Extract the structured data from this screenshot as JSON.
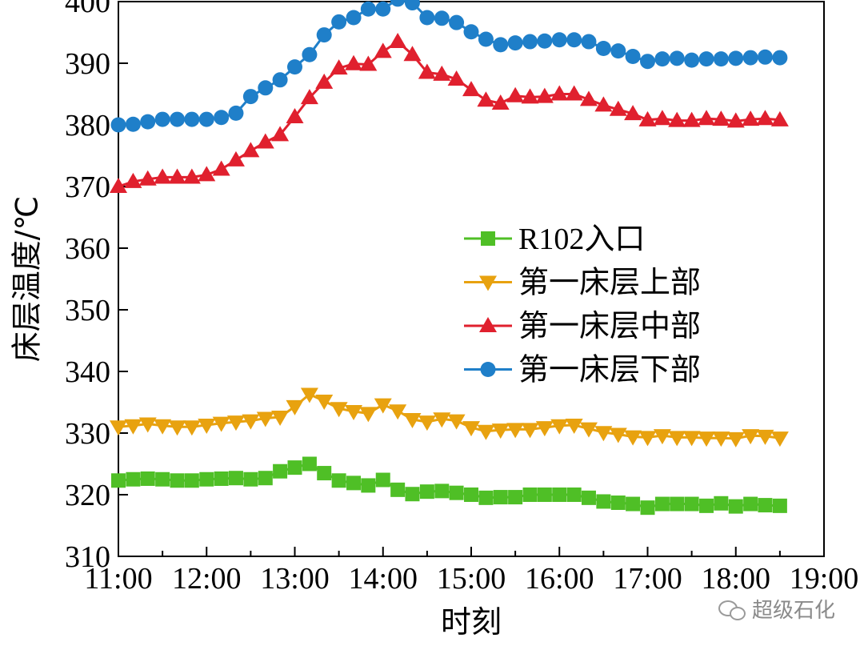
{
  "chart_data": {
    "type": "line",
    "xlabel": "时刻",
    "ylabel": "床层温度/℃",
    "xlim": [
      0,
      8
    ],
    "ylim": [
      310,
      400
    ],
    "x_ticks": [
      "11:00",
      "12:00",
      "13:00",
      "14:00",
      "15:00",
      "16:00",
      "17:00",
      "18:00",
      "19:00"
    ],
    "y_ticks": [
      310,
      320,
      330,
      340,
      350,
      360,
      370,
      380,
      390,
      400
    ],
    "grid": false,
    "legend_position": "center-right",
    "x": [
      0,
      0.167,
      0.333,
      0.5,
      0.667,
      0.833,
      1,
      1.167,
      1.333,
      1.5,
      1.667,
      1.833,
      2,
      2.167,
      2.333,
      2.5,
      2.667,
      2.833,
      3,
      3.167,
      3.333,
      3.5,
      3.667,
      3.833,
      4,
      4.167,
      4.333,
      4.5,
      4.667,
      4.833,
      5,
      5.167,
      5.333,
      5.5,
      5.667,
      5.833,
      6,
      6.167,
      6.333,
      6.5,
      6.667,
      6.833,
      7,
      7.167,
      7.333,
      7.5
    ],
    "series": [
      {
        "name": "R102入口",
        "color": "#4fbf26",
        "marker": "square",
        "values": [
          322.3,
          322.5,
          322.6,
          322.5,
          322.3,
          322.3,
          322.5,
          322.6,
          322.7,
          322.5,
          322.7,
          323.8,
          324.4,
          325.0,
          323.5,
          322.3,
          321.9,
          321.5,
          322.4,
          320.8,
          320.1,
          320.5,
          320.6,
          320.3,
          320.0,
          319.5,
          319.6,
          319.6,
          320.0,
          320.0,
          320.0,
          320.0,
          319.5,
          318.9,
          318.7,
          318.5,
          317.9,
          318.5,
          318.5,
          318.5,
          318.2,
          318.6,
          318.1,
          318.5,
          318.3,
          318.2
        ]
      },
      {
        "name": "第一床层上部",
        "color": "#e8a20f",
        "marker": "triangle-down",
        "values": [
          331.0,
          331.2,
          331.5,
          331.2,
          331.0,
          331.0,
          331.3,
          331.6,
          331.8,
          332.0,
          332.4,
          332.6,
          334.3,
          336.3,
          335.2,
          334.0,
          333.5,
          333.2,
          334.6,
          333.6,
          332.2,
          331.8,
          332.3,
          332.0,
          330.9,
          330.3,
          330.5,
          330.6,
          330.6,
          330.9,
          331.2,
          331.3,
          330.7,
          330.1,
          329.8,
          329.4,
          329.3,
          329.6,
          329.3,
          329.3,
          329.2,
          329.2,
          329.1,
          329.6,
          329.5,
          329.2
        ]
      },
      {
        "name": "第一床层中部",
        "color": "#e0202e",
        "marker": "triangle-up",
        "values": [
          370.0,
          370.8,
          371.2,
          371.5,
          371.5,
          371.5,
          371.9,
          372.8,
          374.3,
          375.8,
          377.2,
          378.4,
          381.3,
          384.4,
          386.9,
          389.2,
          389.9,
          389.8,
          391.9,
          393.5,
          391.4,
          388.5,
          388.2,
          387.4,
          385.7,
          384.0,
          383.5,
          384.7,
          384.5,
          384.6,
          385.0,
          385.0,
          384.1,
          383.2,
          382.5,
          381.8,
          380.8,
          381.0,
          380.7,
          380.7,
          381.0,
          380.9,
          380.6,
          380.9,
          381.0,
          380.8
        ]
      },
      {
        "name": "第一床层下部",
        "color": "#1f7fc9",
        "marker": "circle",
        "values": [
          380.0,
          380.1,
          380.5,
          380.9,
          380.9,
          380.9,
          380.9,
          381.2,
          381.9,
          384.6,
          386.0,
          387.3,
          389.4,
          391.4,
          394.6,
          396.7,
          397.4,
          398.8,
          398.8,
          400.4,
          399.8,
          397.4,
          397.3,
          396.6,
          395.1,
          393.9,
          393.0,
          393.3,
          393.5,
          393.6,
          393.8,
          393.8,
          393.5,
          392.4,
          392.0,
          391.1,
          390.3,
          390.7,
          390.8,
          390.5,
          390.7,
          390.7,
          390.8,
          390.9,
          391.0,
          390.9
        ]
      }
    ]
  },
  "watermark": {
    "text": "超级石化",
    "icon": "wechat-icon"
  }
}
